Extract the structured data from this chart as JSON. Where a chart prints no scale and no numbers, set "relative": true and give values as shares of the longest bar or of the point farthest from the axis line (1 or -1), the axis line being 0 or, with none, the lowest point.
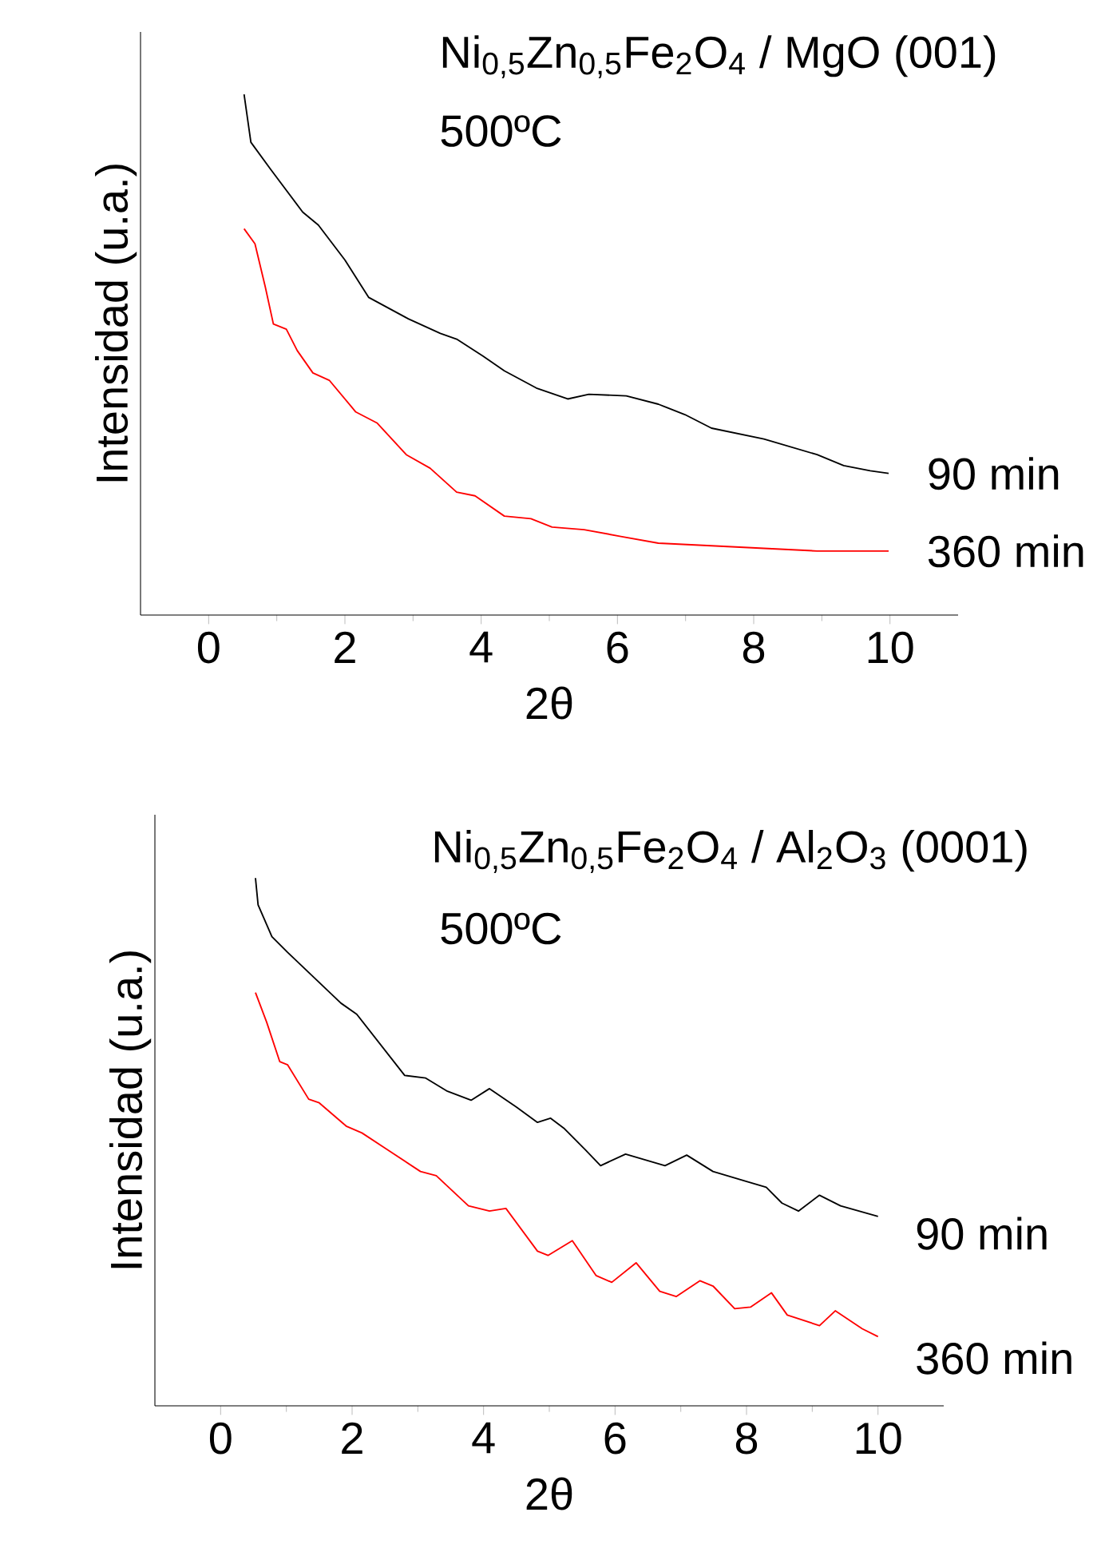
{
  "chart_data": [
    {
      "type": "line",
      "title": "Ni$_{0,5}$Zn$_{0,5}$Fe$_{2}$O$_{4}$ / MgO (001)",
      "subtitle": "500ºC",
      "xlabel": "2θ",
      "ylabel": "Intensidad (u.a.)",
      "relative": true,
      "xlim": [
        -1,
        11
      ],
      "xticks": [
        0,
        2,
        4,
        6,
        8,
        10
      ],
      "series": [
        {
          "name": "90 min",
          "color": "#000000",
          "x": [
            0.52,
            0.62,
            0.91,
            1.38,
            1.61,
            2.0,
            2.35,
            2.93,
            3.4,
            3.64,
            4.03,
            4.34,
            4.81,
            5.27,
            5.58,
            6.13,
            6.6,
            6.99,
            7.38,
            8.15,
            8.93,
            9.32,
            9.71,
            9.98
          ],
          "values": [
            1.0,
            0.908,
            0.856,
            0.774,
            0.749,
            0.682,
            0.61,
            0.569,
            0.541,
            0.53,
            0.497,
            0.469,
            0.436,
            0.415,
            0.424,
            0.421,
            0.405,
            0.385,
            0.359,
            0.338,
            0.308,
            0.287,
            0.277,
            0.272
          ]
        },
        {
          "name": "360 min",
          "color": "#ff0000",
          "x": [
            0.52,
            0.68,
            0.83,
            0.95,
            1.14,
            1.3,
            1.53,
            1.77,
            2.16,
            2.47,
            2.9,
            3.25,
            3.64,
            3.91,
            4.34,
            4.73,
            5.04,
            5.51,
            6.05,
            6.6,
            7.38,
            8.15,
            8.93,
            9.98
          ],
          "values": [
            0.742,
            0.713,
            0.631,
            0.559,
            0.549,
            0.508,
            0.465,
            0.451,
            0.39,
            0.369,
            0.308,
            0.282,
            0.236,
            0.229,
            0.19,
            0.185,
            0.169,
            0.164,
            0.151,
            0.138,
            0.133,
            0.128,
            0.123,
            0.123
          ]
        }
      ]
    },
    {
      "type": "line",
      "title": "Ni$_{0,5}$Zn$_{0,5}$Fe$_{2}$O$_{4}$ / Al$_{2}$O$_{3}$ (0001)",
      "subtitle": "500ºC",
      "xlabel": "2θ",
      "ylabel": "Intensidad (u.a.)",
      "relative": true,
      "xlim": [
        -1,
        11
      ],
      "xticks": [
        0,
        2,
        4,
        6,
        8,
        10
      ],
      "series": [
        {
          "name": "90 min",
          "color": "#000000",
          "x": [
            0.53,
            0.57,
            0.78,
            1.02,
            1.83,
            2.07,
            2.8,
            3.12,
            3.45,
            3.81,
            4.09,
            4.5,
            4.82,
            5.02,
            5.23,
            5.55,
            5.78,
            6.16,
            6.76,
            7.09,
            7.49,
            7.98,
            8.3,
            8.54,
            8.79,
            9.11,
            9.43,
            10.0
          ],
          "values": [
            1.0,
            0.949,
            0.889,
            0.859,
            0.763,
            0.742,
            0.626,
            0.621,
            0.596,
            0.579,
            0.601,
            0.566,
            0.537,
            0.545,
            0.525,
            0.485,
            0.455,
            0.477,
            0.455,
            0.475,
            0.444,
            0.426,
            0.414,
            0.384,
            0.369,
            0.399,
            0.379,
            0.359
          ]
        },
        {
          "name": "360 min",
          "color": "#ff0000",
          "x": [
            0.53,
            0.7,
            0.9,
            1.02,
            1.34,
            1.5,
            1.91,
            2.15,
            2.48,
            3.04,
            3.28,
            3.77,
            4.09,
            4.34,
            4.82,
            4.98,
            5.35,
            5.71,
            5.95,
            6.32,
            6.68,
            6.93,
            7.29,
            7.49,
            7.82,
            8.06,
            8.38,
            8.62,
            9.11,
            9.35,
            9.76,
            10.0
          ],
          "values": [
            0.783,
            0.727,
            0.652,
            0.646,
            0.581,
            0.574,
            0.53,
            0.517,
            0.49,
            0.444,
            0.436,
            0.379,
            0.369,
            0.374,
            0.293,
            0.285,
            0.313,
            0.247,
            0.234,
            0.271,
            0.217,
            0.207,
            0.237,
            0.227,
            0.184,
            0.187,
            0.214,
            0.172,
            0.152,
            0.18,
            0.146,
            0.131
          ]
        }
      ]
    }
  ]
}
